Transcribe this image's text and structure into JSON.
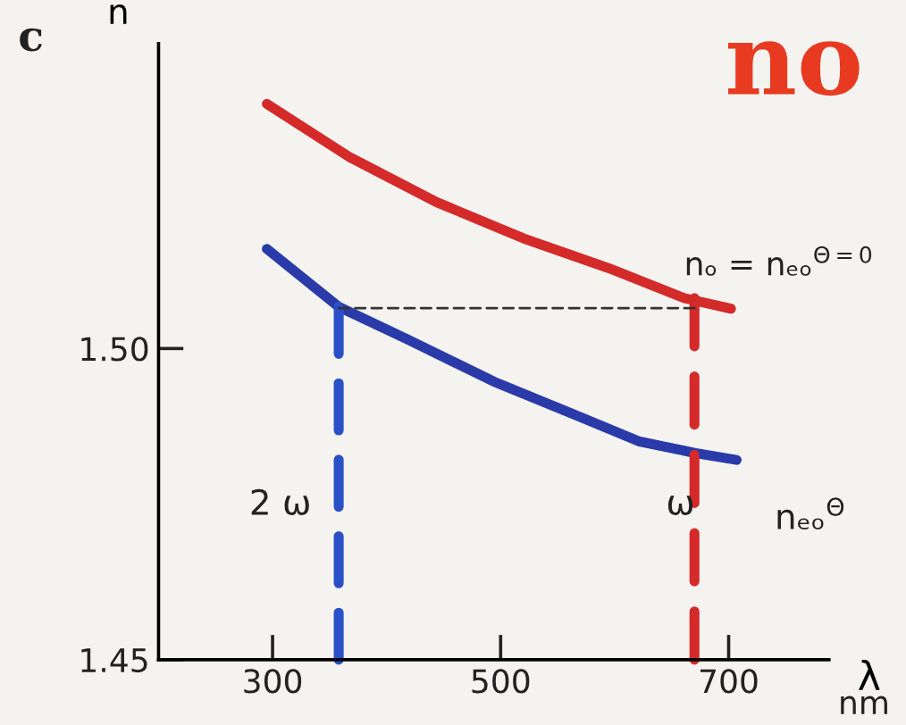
{
  "chart_data": {
    "type": "line",
    "ylabel": "n",
    "xlabel": "λ",
    "xlim": [
      200,
      788
    ],
    "ylim": [
      1.45,
      1.549
    ],
    "xticks": [
      300,
      500,
      700
    ],
    "yticks": [
      {
        "value": 1.45,
        "label": "1.45"
      },
      {
        "value": 1.5,
        "label": "1.50"
      }
    ],
    "grid": false,
    "legend": false,
    "marker": "none",
    "series": [
      {
        "color": "#d42a2a",
        "line_style": "solid",
        "x": [
          295,
          368,
          444,
          520,
          595,
          661,
          702
        ],
        "values": [
          1.5393,
          1.5307,
          1.5235,
          1.5177,
          1.5129,
          1.5081,
          1.5064
        ]
      },
      {
        "color": "#2a3aa8",
        "line_style": "solid",
        "x": [
          295,
          358,
          419,
          494,
          570,
          621,
          671,
          707
        ],
        "values": [
          1.516,
          1.5067,
          1.5014,
          1.4947,
          1.489,
          1.4851,
          1.4832,
          1.4821
        ]
      },
      {
        "color": "#333333",
        "line_style": "dashed",
        "x": [
          358,
          670
        ],
        "values": [
          1.5065,
          1.5065
        ]
      },
      {
        "color": "#2a50c8",
        "line_style": "dashed",
        "x": [
          358,
          358
        ],
        "values": [
          1.45,
          1.5067
        ]
      },
      {
        "color": "#d42a2a",
        "line_style": "dashed",
        "x": [
          670,
          670
        ],
        "values": [
          1.45,
          1.5081
        ]
      }
    ],
    "annotations": [
      "2 ω",
      "ω",
      "nₒ = nₑₒ$^{Θ=0}$",
      "nₑₒ$^{Θ}$",
      "c",
      "nm",
      "no"
    ]
  }
}
